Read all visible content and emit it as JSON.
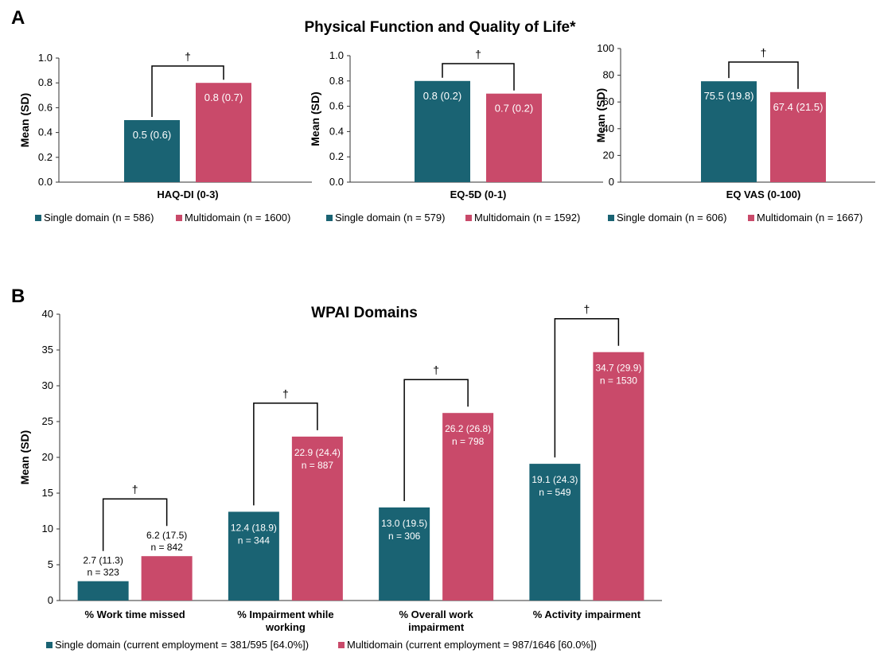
{
  "colors": {
    "single": "#1a6373",
    "multi": "#c94a6a"
  },
  "panel_a": {
    "letter": "A",
    "title": "Physical Function and Quality of Life*"
  },
  "panel_b": {
    "letter": "B",
    "title": "WPAI Domains",
    "legend": {
      "single": "Single domain (current employment = 381/595 [64.0%])",
      "multi": "Multidomain (current employment = 987/1646 [60.0%])"
    }
  },
  "chart_data": [
    {
      "type": "bar",
      "ylabel": "Mean (SD)",
      "ylim": [
        0,
        1.0
      ],
      "yticks": [
        "0.0",
        "0.2",
        "0.4",
        "0.6",
        "0.8",
        "1.0"
      ],
      "category": "HAQ-DI (0-3)",
      "series": [
        {
          "name": "Single domain (n = 586)",
          "value": 0.5,
          "label": "0.5 (0.6)"
        },
        {
          "name": "Multidomain (n = 1600)",
          "value": 0.8,
          "label": "0.8 (0.7)"
        }
      ],
      "significance": "†"
    },
    {
      "type": "bar",
      "ylabel": "Mean (SD)",
      "ylim": [
        0,
        1.0
      ],
      "yticks": [
        "0.0",
        "0.2",
        "0.4",
        "0.6",
        "0.8",
        "1.0"
      ],
      "category": "EQ-5D (0-1)",
      "series": [
        {
          "name": "Single domain (n = 579)",
          "value": 0.8,
          "label": "0.8 (0.2)"
        },
        {
          "name": "Multidomain (n = 1592)",
          "value": 0.7,
          "label": "0.7 (0.2)"
        }
      ],
      "significance": "†"
    },
    {
      "type": "bar",
      "ylabel": "Mean (SD)",
      "ylim": [
        0,
        100
      ],
      "yticks": [
        "0",
        "20",
        "40",
        "60",
        "80",
        "100"
      ],
      "category": "EQ VAS (0-100)",
      "series": [
        {
          "name": "Single domain (n = 606)",
          "value": 75.5,
          "label": "75.5 (19.8)"
        },
        {
          "name": "Multidomain (n = 1667)",
          "value": 67.4,
          "label": "67.4 (21.5)"
        }
      ],
      "significance": "†"
    },
    {
      "type": "bar",
      "ylabel": "Mean (SD)",
      "ylim": [
        0,
        40
      ],
      "yticks": [
        "0",
        "5",
        "10",
        "15",
        "20",
        "25",
        "30",
        "35",
        "40"
      ],
      "categories": [
        [
          "% Work time missed"
        ],
        [
          "% Impairment while",
          "working"
        ],
        [
          "% Overall work",
          "impairment"
        ],
        [
          "% Activity impairment"
        ]
      ],
      "series": [
        {
          "name": "Single domain",
          "values": [
            2.7,
            12.4,
            13.0,
            19.1
          ],
          "labels": [
            "2.7 (11.3)",
            "12.4 (18.9)",
            "13.0 (19.5)",
            "19.1 (24.3)"
          ],
          "n_labels": [
            "n = 323",
            "n = 344",
            "n = 306",
            "n = 549"
          ]
        },
        {
          "name": "Multidomain",
          "values": [
            6.2,
            22.9,
            26.2,
            34.7
          ],
          "labels": [
            "6.2 (17.5)",
            "22.9 (24.4)",
            "26.2 (26.8)",
            "34.7 (29.9)"
          ],
          "n_labels": [
            "n = 842",
            "n = 887",
            "n = 798",
            "n = 1530"
          ]
        }
      ],
      "significance": [
        "†",
        "†",
        "†",
        "†"
      ]
    }
  ]
}
